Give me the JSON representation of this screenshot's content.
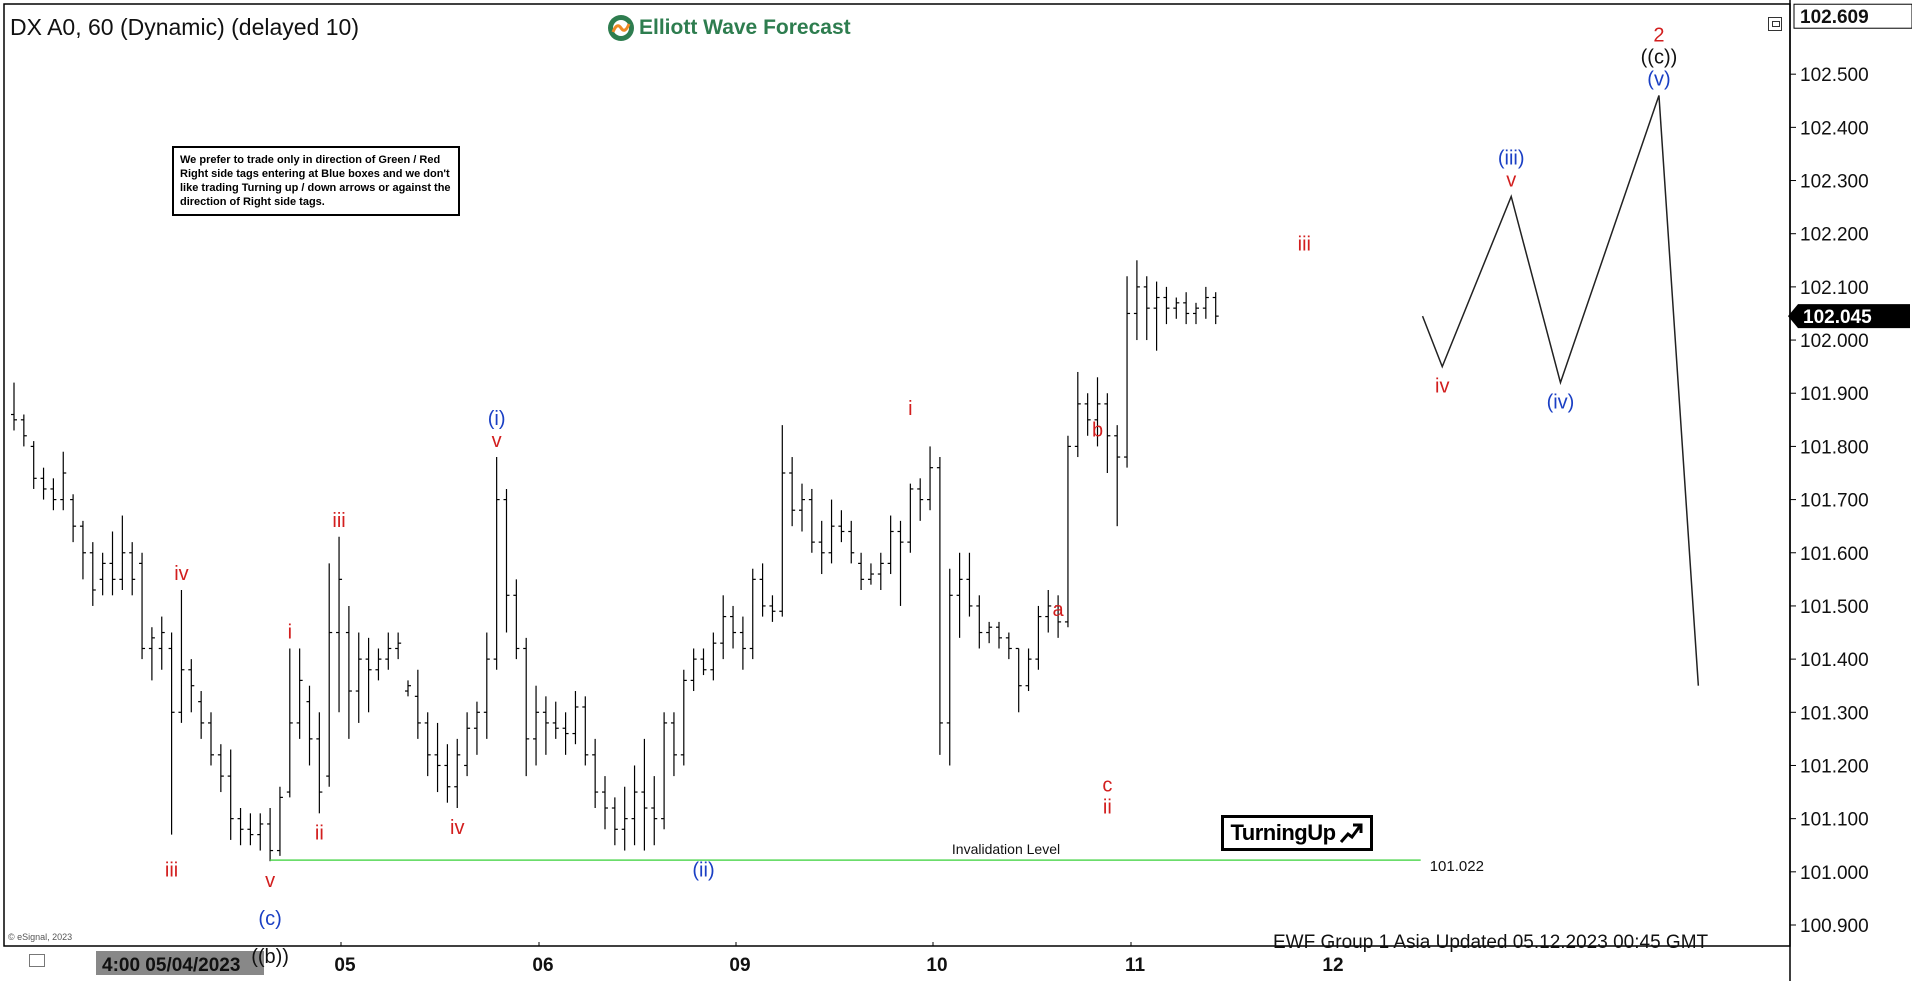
{
  "header": {
    "symbol_title": "DX A0, 60 (Dynamic) (delayed 10)",
    "brand_name": "Elliott Wave Forecast",
    "brand_logo_icon": "ewf-logo-icon"
  },
  "notice": {
    "text": "We prefer to trade only in direction of Green / Red Right side tags entering at Blue boxes and we don't like trading Turning up / down arrows or against the direction of Right side tags."
  },
  "badge": {
    "text": "TurningUp",
    "icon": "arrow-up-right-icon"
  },
  "footer": {
    "updated": "EWF Group 1 Asia Updated 05.12.2023 00:45 GMT",
    "copyright": "© eSignal, 2023"
  },
  "colors": {
    "red_label": "#d21e1e",
    "blue_label": "#1a3fc4",
    "black_label": "#111111",
    "invalidation_line": "#56d856",
    "current_price_bg": "#000000"
  },
  "chart_data": {
    "type": "ohlc-bar",
    "time_axis": {
      "first_label": "4:00 05/04/2023",
      "labels": [
        {
          "label": "05",
          "index": 22
        },
        {
          "label": "06",
          "index": 42
        },
        {
          "label": "09",
          "index": 62
        },
        {
          "label": "10",
          "index": 82
        },
        {
          "label": "11",
          "index": 102
        },
        {
          "label": "12",
          "index": 122
        }
      ],
      "first_label_index": 0
    },
    "y_axis": {
      "ticks": [
        100.9,
        101.0,
        101.1,
        101.2,
        101.3,
        101.4,
        101.5,
        101.6,
        101.7,
        101.8,
        101.9,
        102.0,
        102.1,
        102.2,
        102.3,
        102.4,
        102.5
      ],
      "tick_labels": [
        "100.900",
        "101.000",
        "101.100",
        "101.200",
        "101.300",
        "101.400",
        "101.500",
        "101.600",
        "101.700",
        "101.800",
        "101.900",
        "102.000",
        "102.100",
        "102.200",
        "102.300",
        "102.400",
        "102.500"
      ],
      "top_label": "102.609",
      "current_price": 102.045,
      "current_price_label": "102.045",
      "range": [
        100.85,
        102.63
      ]
    },
    "bars": [
      [
        101.86,
        101.92,
        101.83,
        101.85
      ],
      [
        101.85,
        101.86,
        101.8,
        101.82
      ],
      [
        101.8,
        101.81,
        101.72,
        101.74
      ],
      [
        101.74,
        101.76,
        101.7,
        101.72
      ],
      [
        101.72,
        101.74,
        101.68,
        101.7
      ],
      [
        101.7,
        101.79,
        101.68,
        101.75
      ],
      [
        101.7,
        101.71,
        101.62,
        101.65
      ],
      [
        101.65,
        101.66,
        101.55,
        101.6
      ],
      [
        101.6,
        101.62,
        101.5,
        101.53
      ],
      [
        101.55,
        101.6,
        101.52,
        101.58
      ],
      [
        101.58,
        101.64,
        101.52,
        101.55
      ],
      [
        101.55,
        101.67,
        101.53,
        101.6
      ],
      [
        101.6,
        101.62,
        101.52,
        101.55
      ],
      [
        101.58,
        101.6,
        101.4,
        101.42
      ],
      [
        101.42,
        101.46,
        101.36,
        101.44
      ],
      [
        101.42,
        101.48,
        101.38,
        101.45
      ],
      [
        101.42,
        101.45,
        101.07,
        101.3
      ],
      [
        101.3,
        101.53,
        101.28,
        101.38
      ],
      [
        101.38,
        101.4,
        101.3,
        101.35
      ],
      [
        101.32,
        101.34,
        101.25,
        101.28
      ],
      [
        101.28,
        101.3,
        101.2,
        101.22
      ],
      [
        101.22,
        101.24,
        101.15,
        101.18
      ],
      [
        101.18,
        101.23,
        101.06,
        101.1
      ],
      [
        101.1,
        101.12,
        101.05,
        101.08
      ],
      [
        101.08,
        101.11,
        101.05,
        101.07
      ],
      [
        101.07,
        101.11,
        101.04,
        101.09
      ],
      [
        101.09,
        101.12,
        101.02,
        101.04
      ],
      [
        101.04,
        101.16,
        101.03,
        101.14
      ],
      [
        101.15,
        101.42,
        101.14,
        101.28
      ],
      [
        101.28,
        101.42,
        101.25,
        101.36
      ],
      [
        101.32,
        101.35,
        101.2,
        101.25
      ],
      [
        101.25,
        101.3,
        101.11,
        101.15
      ],
      [
        101.18,
        101.58,
        101.16,
        101.45
      ],
      [
        101.45,
        101.63,
        101.3,
        101.55
      ],
      [
        101.45,
        101.5,
        101.25,
        101.34
      ],
      [
        101.34,
        101.45,
        101.28,
        101.4
      ]
    ],
    "bars_cont": [
      [
        101.4,
        101.44,
        101.3,
        101.38
      ],
      [
        101.38,
        101.42,
        101.36,
        101.4
      ],
      [
        101.4,
        101.45,
        101.38,
        101.42
      ],
      [
        101.42,
        101.45,
        101.4,
        101.43
      ],
      [
        101.34,
        101.36,
        101.33,
        101.35
      ],
      [
        101.33,
        101.38,
        101.25,
        101.28
      ],
      [
        101.28,
        101.3,
        101.18,
        101.22
      ],
      [
        101.22,
        101.28,
        101.15,
        101.2
      ],
      [
        101.2,
        101.24,
        101.13,
        101.16
      ],
      [
        101.16,
        101.25,
        101.12,
        101.22
      ],
      [
        101.2,
        101.3,
        101.18,
        101.27
      ],
      [
        101.27,
        101.32,
        101.22,
        101.3
      ],
      [
        101.3,
        101.45,
        101.25,
        101.4
      ],
      [
        101.4,
        101.78,
        101.38,
        101.7
      ],
      [
        101.7,
        101.72,
        101.45,
        101.52
      ],
      [
        101.52,
        101.55,
        101.4,
        101.42
      ],
      [
        101.42,
        101.44,
        101.18,
        101.25
      ],
      [
        101.25,
        101.35,
        101.2,
        101.3
      ],
      [
        101.3,
        101.33,
        101.22,
        101.28
      ],
      [
        101.28,
        101.32,
        101.25,
        101.27
      ]
    ],
    "bars_more": [
      [
        101.27,
        101.3,
        101.22,
        101.26
      ],
      [
        101.26,
        101.34,
        101.24,
        101.31
      ],
      [
        101.31,
        101.33,
        101.2,
        101.22
      ],
      [
        101.22,
        101.25,
        101.12,
        101.15
      ],
      [
        101.15,
        101.18,
        101.08,
        101.12
      ],
      [
        101.12,
        101.14,
        101.05,
        101.08
      ],
      [
        101.08,
        101.16,
        101.04,
        101.1
      ],
      [
        101.1,
        101.2,
        101.05,
        101.15
      ],
      [
        101.15,
        101.25,
        101.04,
        101.12
      ],
      [
        101.12,
        101.18,
        101.05,
        101.1
      ],
      [
        101.1,
        101.3,
        101.08,
        101.28
      ],
      [
        101.28,
        101.3,
        101.18,
        101.22
      ],
      [
        101.22,
        101.38,
        101.2,
        101.36
      ],
      [
        101.36,
        101.42,
        101.34,
        101.4
      ],
      [
        101.4,
        101.42,
        101.37,
        101.38
      ],
      [
        101.38,
        101.45,
        101.36,
        101.43
      ],
      [
        101.43,
        101.52,
        101.4,
        101.48
      ],
      [
        101.48,
        101.5,
        101.42,
        101.45
      ],
      [
        101.45,
        101.48,
        101.38,
        101.42
      ],
      [
        101.42,
        101.57,
        101.4,
        101.55
      ]
    ],
    "bars_late": [
      [
        101.55,
        101.58,
        101.48,
        101.5
      ],
      [
        101.5,
        101.52,
        101.47,
        101.49
      ],
      [
        101.49,
        101.84,
        101.48,
        101.75
      ],
      [
        101.75,
        101.78,
        101.65,
        101.68
      ],
      [
        101.68,
        101.73,
        101.64,
        101.7
      ],
      [
        101.7,
        101.72,
        101.6,
        101.62
      ],
      [
        101.62,
        101.66,
        101.56,
        101.6
      ],
      [
        101.6,
        101.7,
        101.58,
        101.65
      ],
      [
        101.65,
        101.68,
        101.62,
        101.64
      ],
      [
        101.64,
        101.66,
        101.58,
        101.6
      ],
      [
        101.58,
        101.6,
        101.53,
        101.55
      ],
      [
        101.55,
        101.58,
        101.54,
        101.56
      ],
      [
        101.56,
        101.6,
        101.53,
        101.58
      ],
      [
        101.58,
        101.67,
        101.56,
        101.64
      ],
      [
        101.64,
        101.66,
        101.5,
        101.62
      ],
      [
        101.62,
        101.73,
        101.6,
        101.72
      ],
      [
        101.72,
        101.74,
        101.66,
        101.7
      ],
      [
        101.7,
        101.8,
        101.68,
        101.76
      ],
      [
        101.76,
        101.78,
        101.22,
        101.28
      ],
      [
        101.28,
        101.57,
        101.2,
        101.52
      ]
    ],
    "bars_final": [
      [
        101.52,
        101.6,
        101.44,
        101.55
      ],
      [
        101.55,
        101.6,
        101.48,
        101.5
      ],
      [
        101.5,
        101.52,
        101.42,
        101.45
      ],
      [
        101.45,
        101.47,
        101.43,
        101.46
      ],
      [
        101.46,
        101.47,
        101.42,
        101.44
      ],
      [
        101.44,
        101.45,
        101.4,
        101.42
      ],
      [
        101.42,
        101.42,
        101.3,
        101.35
      ],
      [
        101.35,
        101.42,
        101.34,
        101.4
      ],
      [
        101.4,
        101.5,
        101.38,
        101.48
      ],
      [
        101.48,
        101.53,
        101.45,
        101.5
      ],
      [
        101.5,
        101.52,
        101.44,
        101.47
      ],
      [
        101.47,
        101.82,
        101.46,
        101.8
      ],
      [
        101.8,
        101.94,
        101.78,
        101.88
      ],
      [
        101.88,
        101.9,
        101.82,
        101.85
      ],
      [
        101.85,
        101.93,
        101.8,
        101.88
      ],
      [
        101.88,
        101.9,
        101.75,
        101.82
      ],
      [
        101.82,
        101.84,
        101.65,
        101.78
      ],
      [
        101.78,
        102.12,
        101.76,
        102.05
      ],
      [
        102.05,
        102.15,
        102.0,
        102.1
      ],
      [
        102.1,
        102.12,
        102.0,
        102.06
      ],
      [
        102.06,
        102.11,
        101.98,
        102.08
      ],
      [
        102.08,
        102.1,
        102.03,
        102.06
      ],
      [
        102.06,
        102.08,
        102.04,
        102.07
      ],
      [
        102.07,
        102.09,
        102.03,
        102.05
      ],
      [
        102.05,
        102.07,
        102.03,
        102.06
      ],
      [
        102.06,
        102.1,
        102.04,
        102.08
      ],
      [
        102.08,
        102.09,
        102.03,
        102.045
      ]
    ],
    "projection": [
      {
        "index": 143,
        "price": 102.045
      },
      {
        "index": 145,
        "price": 101.95
      },
      {
        "index": 152,
        "price": 102.27
      },
      {
        "index": 157,
        "price": 101.92
      },
      {
        "index": 167,
        "price": 102.46
      },
      {
        "index": 171,
        "price": 101.35
      }
    ],
    "invalidation": {
      "price": 101.022,
      "label": "Invalidation Level",
      "value_label": "101.022",
      "from_index": 26,
      "to_index": 142
    },
    "wave_labels": [
      {
        "text": "iii",
        "index": 16,
        "price": 101.04,
        "color": "red",
        "pos": "below"
      },
      {
        "text": "iv",
        "index": 17,
        "price": 101.53,
        "color": "red",
        "pos": "above"
      },
      {
        "text": "v",
        "index": 26,
        "price": 101.02,
        "color": "red",
        "pos": "below"
      },
      {
        "text": "(c)",
        "index": 26,
        "price": 100.99,
        "color": "blue",
        "pos": "below2"
      },
      {
        "text": "((b))",
        "index": 26,
        "price": 100.96,
        "color": "black",
        "pos": "below3"
      },
      {
        "text": "i",
        "index": 28,
        "price": 101.42,
        "color": "red",
        "pos": "above"
      },
      {
        "text": "ii",
        "index": 31,
        "price": 101.11,
        "color": "red",
        "pos": "below"
      },
      {
        "text": "iii",
        "index": 33,
        "price": 101.63,
        "color": "red",
        "pos": "above"
      },
      {
        "text": "iv",
        "index": 45,
        "price": 101.12,
        "color": "red",
        "pos": "below"
      },
      {
        "text": "v",
        "index": 49,
        "price": 101.78,
        "color": "red",
        "pos": "above"
      },
      {
        "text": "(i)",
        "index": 49,
        "price": 101.78,
        "color": "blue",
        "pos": "above2"
      },
      {
        "text": "(ii)",
        "index": 70,
        "price": 101.04,
        "color": "blue",
        "pos": "below"
      },
      {
        "text": "i",
        "index": 91,
        "price": 101.84,
        "color": "red",
        "pos": "above"
      },
      {
        "text": "a",
        "index": 106,
        "price": 101.53,
        "color": "red",
        "pos": "below"
      },
      {
        "text": "b",
        "index": 110,
        "price": 101.8,
        "color": "red",
        "pos": "above"
      },
      {
        "text": "c",
        "index": 111,
        "price": 101.2,
        "color": "red",
        "pos": "below"
      },
      {
        "text": "ii",
        "index": 111,
        "price": 101.2,
        "color": "red",
        "pos": "below2"
      },
      {
        "text": "iii",
        "index": 131,
        "price": 102.15,
        "color": "red",
        "pos": "above"
      },
      {
        "text": "iv",
        "index": 145,
        "price": 101.95,
        "color": "red",
        "pos": "below"
      },
      {
        "text": "v",
        "index": 152,
        "price": 102.27,
        "color": "red",
        "pos": "above"
      },
      {
        "text": "(iii)",
        "index": 152,
        "price": 102.27,
        "color": "blue",
        "pos": "above2"
      },
      {
        "text": "(iv)",
        "index": 157,
        "price": 101.92,
        "color": "blue",
        "pos": "below"
      },
      {
        "text": "(v)",
        "index": 167,
        "price": 102.46,
        "color": "blue",
        "pos": "above"
      },
      {
        "text": "((c))",
        "index": 167,
        "price": 102.46,
        "color": "black",
        "pos": "above2"
      },
      {
        "text": "2",
        "index": 167,
        "price": 102.46,
        "color": "red",
        "pos": "above3"
      }
    ]
  }
}
